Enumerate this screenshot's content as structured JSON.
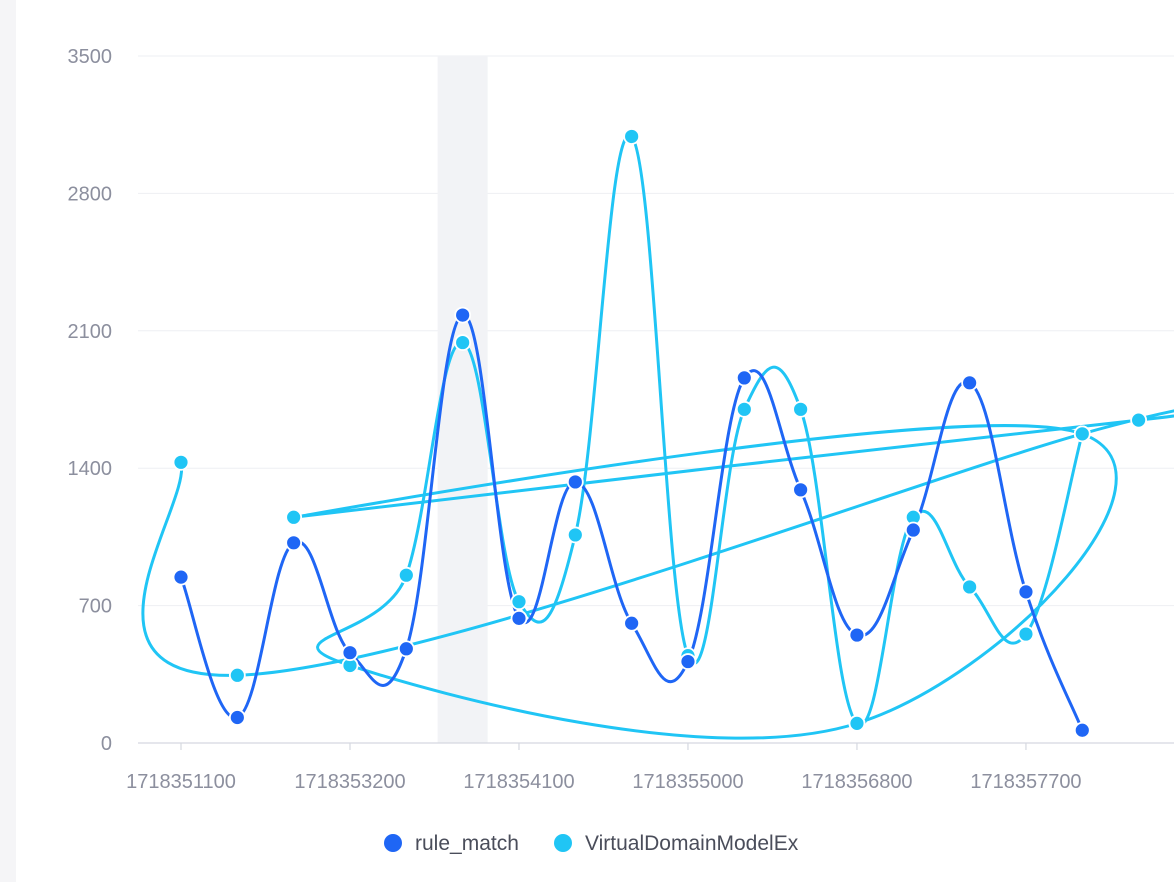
{
  "chart_data": {
    "type": "line",
    "title": "",
    "xlabel": "",
    "ylabel": "",
    "ylim": [
      0,
      3500
    ],
    "y_ticks": [
      "0",
      "700",
      "1400",
      "2100",
      "2800",
      "3500"
    ],
    "x_ticks": [
      "1718351100",
      "1718353200",
      "1718354100",
      "1718355000",
      "1718356800",
      "1718357700"
    ],
    "smooth": true,
    "grid": "horizontal",
    "legend_position": "bottom-center",
    "highlight_band_color": "#f2f3f6",
    "series": [
      {
        "name": "rule_match",
        "color": "#1f66f5",
        "points": [
          {
            "x": 1718351100,
            "y": 845
          },
          {
            "x": 1718351400,
            "y": 130
          },
          {
            "x": 1718351700,
            "y": 1020
          },
          {
            "x": 1718353200,
            "y": 460
          },
          {
            "x": 1718353500,
            "y": 480
          },
          {
            "x": 1718353800,
            "y": 2180
          },
          {
            "x": 1718354100,
            "y": 635
          },
          {
            "x": 1718354400,
            "y": 1330
          },
          {
            "x": 1718354700,
            "y": 610
          },
          {
            "x": 1718355000,
            "y": 415
          },
          {
            "x": 1718355300,
            "y": 1860
          },
          {
            "x": 1718355600,
            "y": 1290
          },
          {
            "x": 1718356800,
            "y": 550
          },
          {
            "x": 1718357100,
            "y": 1085
          },
          {
            "x": 1718357400,
            "y": 1835
          },
          {
            "x": 1718357700,
            "y": 770
          },
          {
            "x": 1718358000,
            "y": 65
          }
        ]
      },
      {
        "name": "VirtualDomainModelEx",
        "color": "#20c5f5",
        "points": [
          {
            "x": 1718351100,
            "y": 1430
          },
          {
            "x": 1718351400,
            "y": 345
          },
          {
            "x": 1718358000,
            "y": 1575
          },
          {
            "x": 1718358300,
            "y": 1645
          },
          {
            "x": 1718351700,
            "y": 1150
          },
          {
            "x": 1718358000,
            "y": 1575
          },
          {
            "x": 1718356800,
            "y": 100
          },
          {
            "x": 1718353200,
            "y": 395
          },
          {
            "x": 1718353500,
            "y": 855
          },
          {
            "x": 1718353800,
            "y": 2040
          },
          {
            "x": 1718354100,
            "y": 720
          },
          {
            "x": 1718354400,
            "y": 1060
          },
          {
            "x": 1718354700,
            "y": 3090
          },
          {
            "x": 1718355000,
            "y": 445
          },
          {
            "x": 1718355300,
            "y": 1700
          },
          {
            "x": 1718355600,
            "y": 1700
          },
          {
            "x": 1718356800,
            "y": 100
          },
          {
            "x": 1718357100,
            "y": 1150
          },
          {
            "x": 1718357400,
            "y": 795
          },
          {
            "x": 1718357700,
            "y": 555
          },
          {
            "x": 1718358000,
            "y": 1575
          }
        ]
      }
    ]
  }
}
